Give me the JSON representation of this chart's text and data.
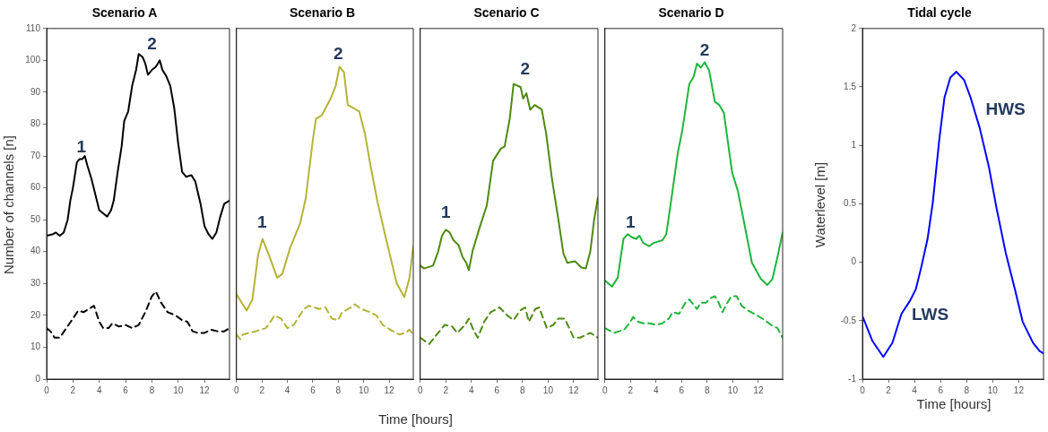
{
  "chart_data": [
    {
      "type": "line",
      "title": "Scenario A",
      "ylabel": "Number of channels [n]",
      "xlim": [
        0,
        13.9
      ],
      "xticks": [
        0,
        2,
        4,
        6,
        8,
        10,
        12
      ],
      "ylim": [
        0,
        110
      ],
      "yticks": [
        0,
        10,
        20,
        30,
        40,
        50,
        60,
        70,
        80,
        90,
        100,
        110
      ],
      "grid": false,
      "legend": false,
      "marker": "none",
      "series": [
        {
          "color": "#000000",
          "line_style": "solid",
          "x": [
            0,
            0.5,
            0.7,
            1,
            1.3,
            1.6,
            1.8,
            2,
            2.3,
            2.5,
            2.7,
            2.9,
            3.1,
            3.4,
            3.7,
            4,
            4.3,
            4.6,
            4.9,
            5.1,
            5.4,
            5.7,
            5.9,
            6.2,
            6.5,
            6.8,
            7,
            7.3,
            7.5,
            7.7,
            8,
            8.3,
            8.6,
            8.8,
            9.1,
            9.4,
            9.7,
            10,
            10.3,
            10.6,
            11,
            11.3,
            11.7,
            12,
            12.3,
            12.6,
            12.9,
            13.2,
            13.5,
            13.9
          ],
          "values": [
            45,
            45.5,
            46,
            45,
            46,
            50,
            56,
            60,
            68,
            69,
            69,
            70,
            67,
            63,
            58,
            53,
            52,
            51,
            53,
            56,
            65,
            73,
            81,
            84,
            92,
            97,
            102,
            101,
            99,
            95.5,
            97,
            98,
            100,
            97,
            95,
            92,
            85,
            74,
            65,
            63.5,
            64,
            62,
            55,
            48,
            45.5,
            44,
            46,
            51,
            55,
            56
          ]
        },
        {
          "color": "#000000",
          "line_style": "dashed",
          "x": [
            0,
            0.3,
            0.6,
            1,
            1.5,
            2,
            2.4,
            2.8,
            3.2,
            3.6,
            4,
            4.3,
            4.7,
            5,
            5.5,
            6,
            6.5,
            7,
            7.5,
            8,
            8.3,
            8.7,
            9.2,
            9.8,
            10.3,
            10.7,
            11.1,
            11.5,
            12,
            12.5,
            13,
            13.5,
            13.9
          ],
          "values": [
            16,
            15,
            13,
            13,
            16,
            19,
            21.5,
            21,
            22,
            23,
            18,
            16,
            16,
            17.5,
            16.5,
            17,
            16,
            17,
            21,
            26,
            27.5,
            24,
            21,
            20,
            18.5,
            18,
            15,
            14.5,
            14.5,
            15.5,
            15,
            15,
            16
          ]
        }
      ],
      "annotations": [
        "1",
        "2",
        "Time [hours]"
      ]
    },
    {
      "type": "line",
      "title": "Scenario B",
      "xlim": [
        0,
        13.9
      ],
      "xticks": [
        0,
        2,
        4,
        6,
        8,
        10,
        12
      ],
      "ylim": [
        0,
        110
      ],
      "yticks": [
        0,
        10,
        20,
        30,
        40,
        50,
        60,
        70,
        80,
        90,
        100,
        110
      ],
      "tick_labels": "x",
      "grid": false,
      "legend": false,
      "marker": "none",
      "series": [
        {
          "color": "#b5b336",
          "line_style": "solid",
          "x": [
            0,
            0.8,
            1.25,
            1.7,
            2.05,
            2.6,
            3.2,
            3.6,
            4.2,
            5,
            5.45,
            6,
            6.25,
            6.7,
            7.4,
            7.8,
            8.1,
            8.45,
            8.75,
            9.2,
            9.65,
            10.1,
            10.55,
            11.1,
            11.7,
            12.6,
            13.2,
            13.6,
            13.9
          ],
          "values": [
            26.6,
            21.5,
            25,
            39,
            44,
            38.4,
            31.8,
            33,
            41,
            48.8,
            56.8,
            75,
            81.7,
            82.7,
            88,
            92,
            98,
            96.3,
            86,
            85,
            84,
            77,
            66.7,
            55.4,
            45,
            30,
            25.7,
            31.8,
            41.7
          ]
        },
        {
          "color": "#b5b336",
          "line_style": "dashed",
          "x": [
            0,
            0.3,
            0.5,
            1.5,
            2.3,
            2.5,
            3,
            3.5,
            4,
            4.5,
            5.3,
            5.7,
            6.5,
            7,
            7.5,
            8,
            8.3,
            9,
            9.3,
            9.8,
            10.5,
            11,
            11.5,
            12.3,
            12.8,
            13.3,
            13.6,
            13.9
          ],
          "values": [
            14,
            12.5,
            14,
            15,
            16,
            17,
            20,
            19,
            16,
            17,
            22,
            23,
            22,
            22.5,
            19,
            18.5,
            21,
            22.5,
            23.5,
            22,
            21,
            20,
            17,
            15,
            14,
            14.5,
            15.5,
            14
          ]
        }
      ],
      "annotations": [
        "1",
        "2"
      ]
    },
    {
      "type": "line",
      "title": "Scenario C",
      "xlim": [
        0,
        13.9
      ],
      "xticks": [
        0,
        2,
        4,
        6,
        8,
        10,
        12
      ],
      "ylim": [
        0,
        110
      ],
      "yticks": [
        0,
        10,
        20,
        30,
        40,
        50,
        60,
        70,
        80,
        90,
        100,
        110
      ],
      "tick_labels": "x",
      "grid": false,
      "legend": false,
      "marker": "none",
      "series": [
        {
          "color": "#4e8a12",
          "line_style": "solid",
          "x": [
            0,
            0.3,
            1,
            1.4,
            1.7,
            2,
            2.3,
            2.6,
            3,
            3.3,
            3.6,
            3.8,
            4.1,
            4.6,
            5.2,
            5.7,
            6.3,
            6.6,
            7,
            7.3,
            7.85,
            8.05,
            8.3,
            8.6,
            8.95,
            9.5,
            9.85,
            10.3,
            10.85,
            11.2,
            11.5,
            12.1,
            12.6,
            12.95,
            13.3,
            13.6,
            13.9
          ],
          "values": [
            35.6,
            34.7,
            35.6,
            40,
            45,
            46.9,
            46,
            43.6,
            42,
            38.4,
            36.5,
            34.2,
            40.3,
            47,
            54.4,
            68.5,
            72.3,
            73,
            81.7,
            92.6,
            91.6,
            88,
            89.7,
            84.5,
            86,
            84.6,
            77,
            62.9,
            48.8,
            39.4,
            36.5,
            37,
            35,
            34.7,
            40,
            50,
            57
          ]
        },
        {
          "color": "#4e8a12",
          "line_style": "dashed",
          "x": [
            0,
            0.7,
            1.3,
            1.9,
            2.5,
            2.9,
            3.5,
            3.8,
            4.2,
            4.5,
            5,
            5.5,
            6.2,
            6.8,
            7.3,
            7.8,
            8.2,
            8.5,
            9,
            9.3,
            9.9,
            10.4,
            10.8,
            11.3,
            12,
            12.5,
            13.3,
            13.9
          ],
          "values": [
            13,
            11,
            14,
            17,
            16.5,
            14.5,
            17,
            19,
            15,
            13,
            18,
            21,
            22.5,
            20,
            18.5,
            21.5,
            22.5,
            18,
            22,
            22.5,
            16,
            17,
            19,
            19,
            13,
            13,
            14.5,
            13
          ]
        }
      ],
      "annotations": [
        "1",
        "2"
      ]
    },
    {
      "type": "line",
      "title": "Scenario D",
      "xlim": [
        0,
        13.9
      ],
      "xticks": [
        0,
        2,
        4,
        6,
        8,
        10,
        12
      ],
      "ylim": [
        0,
        110
      ],
      "yticks": [
        0,
        10,
        20,
        30,
        40,
        50,
        60,
        70,
        80,
        90,
        100,
        110
      ],
      "tick_labels": "x",
      "grid": false,
      "legend": false,
      "marker": "none",
      "series": [
        {
          "color": "#1fb53c",
          "line_style": "solid",
          "x": [
            0,
            0.55,
            1,
            1.45,
            1.8,
            2.1,
            2.45,
            2.7,
            3,
            3.45,
            3.8,
            4.5,
            4.8,
            5.25,
            5.7,
            6.05,
            6.6,
            6.95,
            7.2,
            7.5,
            7.8,
            8.15,
            8.6,
            8.95,
            9.3,
            9.95,
            10.4,
            10.95,
            11.5,
            12.2,
            12.7,
            13.1,
            13.5,
            13.9
          ],
          "values": [
            30.9,
            29,
            31.8,
            44,
            45.5,
            44.5,
            44,
            45,
            42.7,
            41.7,
            42.7,
            43.6,
            45.5,
            58,
            71,
            78,
            92.6,
            95,
            99,
            97.7,
            99.4,
            96.8,
            87,
            86,
            83.6,
            64.8,
            59,
            47.8,
            36.5,
            31.4,
            29.5,
            31.4,
            38.4,
            46
          ]
        },
        {
          "color": "#1fb53c",
          "line_style": "dashed",
          "x": [
            0,
            0.7,
            1.5,
            2,
            2.2,
            2.6,
            3,
            3.5,
            4,
            4.5,
            5,
            5.3,
            5.8,
            6.3,
            6.6,
            7,
            7.2,
            7.5,
            7.9,
            8.3,
            8.6,
            8.9,
            9.2,
            9.5,
            9.9,
            10.3,
            10.7,
            11.2,
            11.9,
            12.5,
            13,
            13.5,
            13.9
          ],
          "values": [
            16,
            14.5,
            15.5,
            18,
            19.5,
            18,
            17.5,
            17.5,
            17,
            17.5,
            19,
            21,
            20.5,
            24,
            25,
            23,
            22,
            24,
            24,
            25.5,
            26,
            24,
            21,
            23.5,
            26,
            26,
            23,
            21.5,
            20,
            18.5,
            17,
            16,
            13
          ]
        }
      ],
      "annotations": [
        "1",
        "2"
      ]
    },
    {
      "type": "line",
      "title": "Tidal cycle",
      "xlabel": "Time [hours]",
      "ylabel": "Waterlevel [m]",
      "xlim": [
        0,
        13.9
      ],
      "xticks": [
        0,
        2,
        4,
        6,
        8,
        10,
        12
      ],
      "ylim": [
        -1,
        2
      ],
      "yticks": [
        -1,
        -0.5,
        0,
        0.5,
        1,
        1.5,
        2
      ],
      "grid": false,
      "legend": false,
      "marker": "none",
      "series": [
        {
          "color": "#0000ff",
          "line_style": "solid",
          "x": [
            0,
            0.75,
            1.6,
            2.3,
            3,
            3.65,
            4.1,
            4.5,
            5,
            5.4,
            5.9,
            6.3,
            6.75,
            7.2,
            7.8,
            8.3,
            9,
            9.7,
            10.3,
            11,
            11.7,
            12.3,
            13.1,
            13.6,
            13.9
          ],
          "values": [
            -0.46,
            -0.67,
            -0.81,
            -0.69,
            -0.44,
            -0.33,
            -0.23,
            -0.05,
            0.2,
            0.51,
            1.05,
            1.41,
            1.58,
            1.63,
            1.56,
            1.41,
            1.15,
            0.82,
            0.46,
            0.08,
            -0.23,
            -0.51,
            -0.69,
            -0.76,
            -0.78
          ]
        }
      ],
      "annotations": [
        "HWS",
        "LWS"
      ]
    }
  ]
}
